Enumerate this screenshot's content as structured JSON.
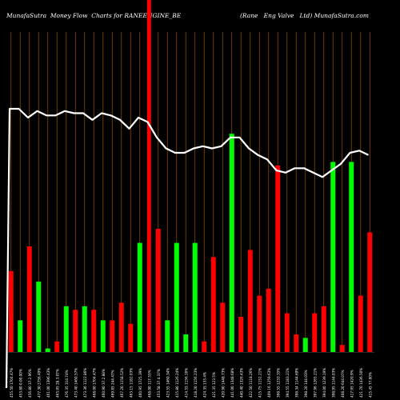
{
  "header": {
    "left_title": "MunafaSutra  Money Flow  Charts for RANEENGINE_BE",
    "right_title": "(Rane   Eng Valve   Ltd) MunafaSutra.com"
  },
  "colors": {
    "background": "#000000",
    "grid": "#8a4a00",
    "up_bar": "#00ff00",
    "down_bar": "#ff0000",
    "price_line": "#ffffff",
    "spike": "#ff0000",
    "axis_text": "#ffffff"
  },
  "chart_data": {
    "type": "bar",
    "title": "MunafaSutra  Money Flow  Charts for RANEENGINE_BE",
    "subtitle": "(Rane   Eng Valve   Ltd) MunafaSutra.com",
    "series": [
      {
        "values": [
          23,
          9,
          30,
          20,
          1,
          3,
          13,
          12,
          13,
          12,
          9,
          9,
          14,
          8,
          31,
          100,
          35,
          9,
          31,
          5,
          31,
          3,
          27,
          14,
          62,
          10,
          29,
          16,
          18,
          53,
          11,
          5,
          4,
          11,
          13,
          54,
          2,
          54,
          16,
          34
        ],
        "colors": [
          "red",
          "green",
          "red",
          "green",
          "green",
          "red",
          "green",
          "red",
          "green",
          "red",
          "green",
          "red",
          "red",
          "red",
          "green",
          "red",
          "red",
          "green",
          "green",
          "green",
          "green",
          "red",
          "red",
          "red",
          "green",
          "red",
          "red",
          "red",
          "red",
          "red",
          "red",
          "red",
          "green",
          "red",
          "red",
          "green",
          "red",
          "green",
          "red",
          "red"
        ]
      },
      {
        "values": [
          96,
          96,
          92,
          95,
          93,
          93,
          95,
          94,
          94,
          91,
          94,
          93,
          91,
          87,
          92,
          90,
          83,
          78,
          76,
          76,
          78,
          79,
          78,
          79,
          83,
          83,
          78,
          75,
          73,
          68,
          67,
          69,
          69,
          67,
          65,
          68,
          71,
          76,
          77,
          75
        ]
      }
    ],
    "price_scale": [
      0,
      100
    ],
    "flow_scale": [
      0,
      100
    ],
    "x_labels": [
      "455.50 1704.47%",
      "453.80 0.00.00%",
      "456.80 37.2.96%",
      "477.30 2756.49%",
      "461.00 1396.43%",
      "463.95 28.3.07%",
      "476.35 314.74%",
      "473.40 1460.57%",
      "473.36 1122.86%",
      "468.00 1704.47%",
      "460.90 37.2.88%",
      "469.85 244.47%",
      "467.20 1158.52%",
      "463.15 1182.03%",
      "460.95 1725.39%",
      "468.00 117.55%",
      "453.58 37.4.37%",
      "423.55 1460.34%",
      "415.80 1126.24%",
      "414.55 1156.16%",
      "418.20 1156.23%",
      "424.35 133.4%",
      "421.35 123.5%",
      "420.90 1448.73%",
      "441.00 1348.68%",
      "440.40 1326.43%",
      "422.50 1118.26%",
      "415.75 1152.21%",
      "409.16 1259.63%",
      "398.55 1233.35%",
      "394.55 1183.21%",
      "398.34 1144.69%",
      "398.20 144.03%",
      "397.96 1265.21%",
      "394.00 1239.19%",
      "398.95 1144.03%",
      "408.20 644.07%",
      "417.95 1420.9%",
      "421.70 1436.50%",
      "415.45 77.00%"
    ]
  }
}
